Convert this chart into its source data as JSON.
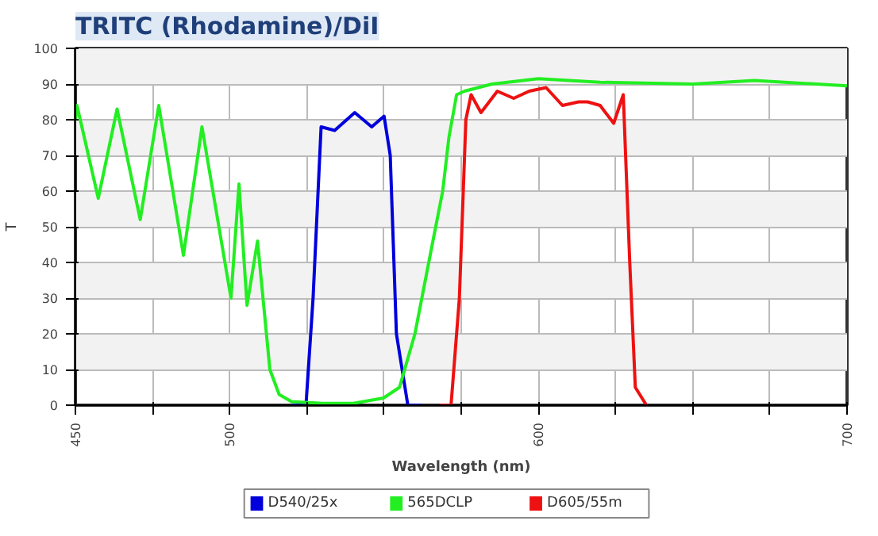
{
  "chart_data": {
    "type": "line",
    "title": "TRITC (Rhodamine)/DiI",
    "xlabel": "Wavelength (nm)",
    "ylabel": "T",
    "xlim": [
      450,
      700
    ],
    "ylim": [
      0,
      100
    ],
    "xticks": [
      450,
      {
        "value": 475,
        "label": null
      },
      500,
      {
        "value": 525,
        "label": null
      },
      {
        "value": 550,
        "label": null
      },
      {
        "value": 575,
        "label": null
      },
      600,
      {
        "value": 625,
        "label": null
      },
      {
        "value": 650,
        "label": null
      },
      {
        "value": 675,
        "label": null
      },
      700
    ],
    "yticks": [
      0,
      10,
      20,
      30,
      40,
      50,
      60,
      70,
      80,
      90,
      100
    ],
    "grid": true,
    "legend": "bottom",
    "series": [
      {
        "name": "D540/25x",
        "color": "#0000dd",
        "x": [
          520,
          524.7,
          527,
          529.6,
          534,
          540.5,
          546,
          550,
          552,
          554,
          557.7,
          562
        ],
        "values": [
          0,
          0,
          30,
          78,
          77,
          82,
          78,
          81,
          70,
          20,
          0,
          0
        ]
      },
      {
        "name": "565DCLP",
        "color": "#22ee22",
        "x": [
          450,
          450.5,
          457.4,
          463.5,
          471,
          477,
          485,
          491,
          500.4,
          503,
          505.6,
          509,
          513,
          516,
          520,
          530,
          540,
          549.8,
          555,
          560,
          565.6,
          569,
          571,
          573.5,
          576,
          585,
          600,
          620,
          650,
          670,
          700
        ],
        "values": [
          80,
          84,
          58,
          83,
          52,
          84,
          42,
          78,
          30,
          62,
          28,
          46,
          10,
          3,
          1,
          0.5,
          0.5,
          2,
          5,
          20,
          45,
          60,
          75,
          87,
          88,
          90,
          91.5,
          90.5,
          90,
          91,
          89.5
        ]
      },
      {
        "name": "D605/55m",
        "color": "#ee1111",
        "x": [
          568,
          571.7,
          574.4,
          576.5,
          578.2,
          581.4,
          586.7,
          592,
          597,
          602.5,
          607.8,
          613,
          616,
          620,
          624.4,
          627.5,
          629.6,
          631.4,
          635
        ],
        "values": [
          0,
          0,
          30,
          80,
          87,
          82,
          88,
          86,
          88,
          89,
          84,
          85,
          85,
          84,
          79,
          87,
          40,
          5,
          0
        ]
      }
    ]
  }
}
